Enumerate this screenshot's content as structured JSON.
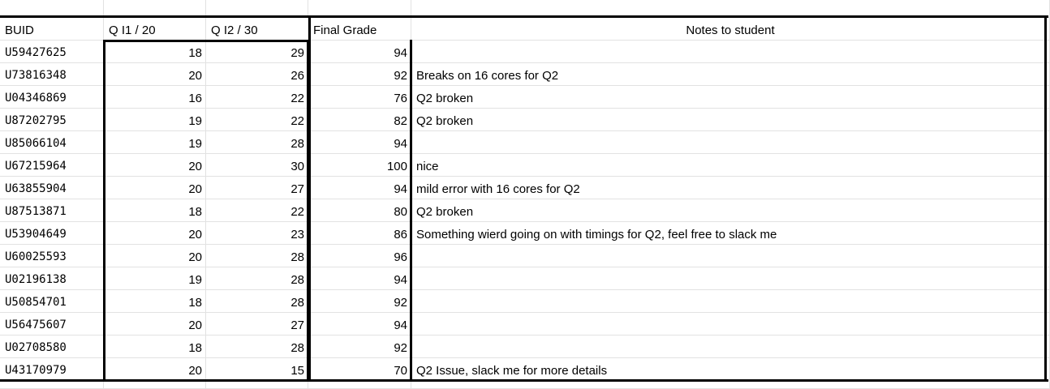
{
  "sheet": {
    "columns": [
      {
        "key": "buid",
        "header": "BUID"
      },
      {
        "key": "q1",
        "header": "Q I1 / 20"
      },
      {
        "key": "q2",
        "header": "Q I2 / 30"
      },
      {
        "key": "final",
        "header": "Final Grade"
      },
      {
        "key": "notes",
        "header": "Notes to student"
      }
    ],
    "rows": [
      {
        "buid": "U59427625",
        "q1": "18",
        "q2": "29",
        "final": "94",
        "notes": ""
      },
      {
        "buid": "U73816348",
        "q1": "20",
        "q2": "26",
        "final": "92",
        "notes": "Breaks on 16 cores for Q2"
      },
      {
        "buid": "U04346869",
        "q1": "16",
        "q2": "22",
        "final": "76",
        "notes": "Q2 broken"
      },
      {
        "buid": "U87202795",
        "q1": "19",
        "q2": "22",
        "final": "82",
        "notes": "Q2 broken"
      },
      {
        "buid": "U85066104",
        "q1": "19",
        "q2": "28",
        "final": "94",
        "notes": ""
      },
      {
        "buid": "U67215964",
        "q1": "20",
        "q2": "30",
        "final": "100",
        "notes": "nice"
      },
      {
        "buid": "U63855904",
        "q1": "20",
        "q2": "27",
        "final": "94",
        "notes": "mild error with 16 cores for Q2"
      },
      {
        "buid": "U87513871",
        "q1": "18",
        "q2": "22",
        "final": "80",
        "notes": "Q2 broken"
      },
      {
        "buid": "U53904649",
        "q1": "20",
        "q2": "23",
        "final": "86",
        "notes": "Something wierd going on with timings for Q2, feel free to slack me"
      },
      {
        "buid": "U60025593",
        "q1": "20",
        "q2": "28",
        "final": "96",
        "notes": ""
      },
      {
        "buid": "U02196138",
        "q1": "19",
        "q2": "28",
        "final": "94",
        "notes": ""
      },
      {
        "buid": "U50854701",
        "q1": "18",
        "q2": "28",
        "final": "92",
        "notes": ""
      },
      {
        "buid": "U56475607",
        "q1": "20",
        "q2": "27",
        "final": "94",
        "notes": ""
      },
      {
        "buid": "U02708580",
        "q1": "18",
        "q2": "28",
        "final": "92",
        "notes": ""
      },
      {
        "buid": "U43170979",
        "q1": "20",
        "q2": "15",
        "final": "70",
        "notes": "Q2 Issue, slack me for more details"
      }
    ]
  }
}
